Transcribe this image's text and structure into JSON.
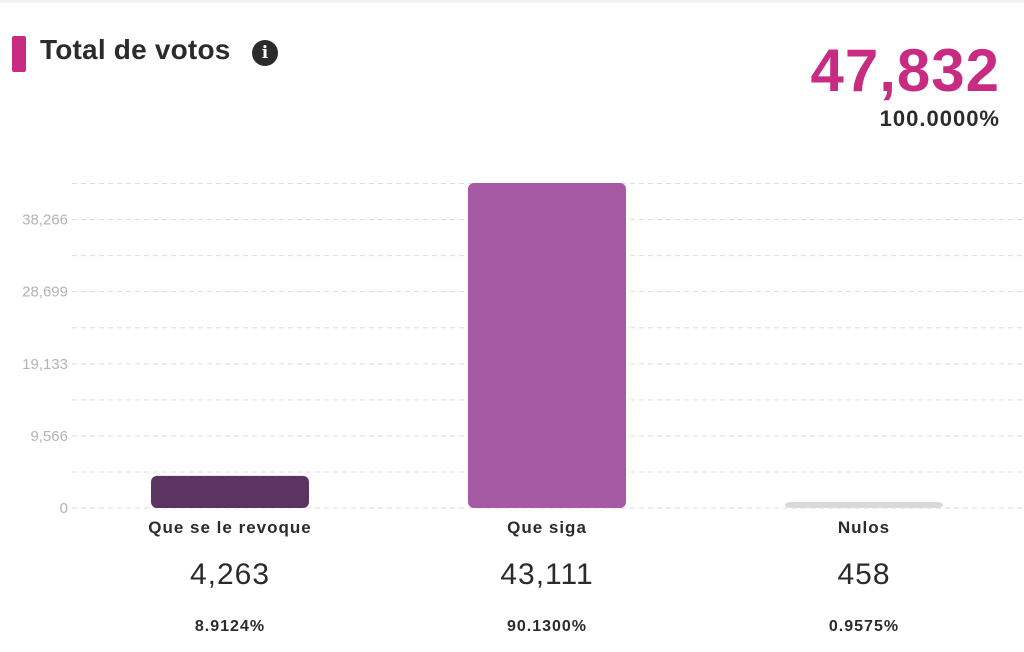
{
  "header": {
    "title": "Total de votos",
    "info_icon": "info-icon",
    "total_value": "47,832",
    "total_percent": "100.0000%"
  },
  "colors": {
    "accent": "#c72c82",
    "text": "#2b2b2b",
    "grid": "#dddddd",
    "tick": "#b3b3b3"
  },
  "chart_data": {
    "type": "bar",
    "categories": [
      "Que se le revoque",
      "Que siga",
      "Nulos"
    ],
    "values": [
      4263,
      43111,
      458
    ],
    "value_labels": [
      "4,263",
      "43,111",
      "458"
    ],
    "percent_labels": [
      "8.9124%",
      "90.1300%",
      "0.9575%"
    ],
    "colors": [
      "#5c3462",
      "#a55aa3",
      "#d9d9d9"
    ],
    "yticks": [
      0,
      9566,
      19133,
      28699,
      38266
    ],
    "ytick_labels": [
      "0",
      "9,566",
      "19,133",
      "28,699",
      "38,266"
    ],
    "ylim": [
      0,
      43111
    ],
    "grid": true,
    "title": "",
    "xlabel": "",
    "ylabel": ""
  }
}
